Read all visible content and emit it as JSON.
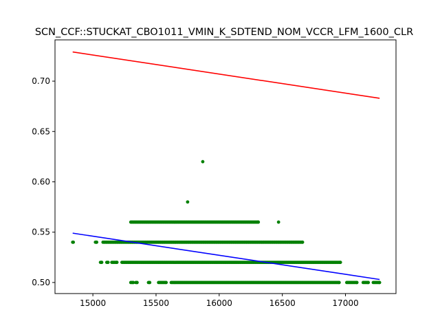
{
  "chart_data": {
    "type": "scatter",
    "title": "SCN_CCF::STUCKAT_CBO1011_VMIN_K_SDTEND_NOM_VCCR_LFM_1600_CLR",
    "xlabel": "",
    "ylabel": "",
    "xlim": [
      14700,
      17400
    ],
    "ylim": [
      0.489,
      0.741
    ],
    "x_ticks": [
      15000,
      15500,
      16000,
      16500,
      17000
    ],
    "y_ticks": [
      0.5,
      0.55,
      0.6,
      0.65,
      0.7
    ],
    "x_tick_labels": [
      "15000",
      "15500",
      "16000",
      "16500",
      "17000"
    ],
    "y_tick_labels": [
      "0.50",
      "0.55",
      "0.60",
      "0.65",
      "0.70"
    ],
    "grid": false,
    "colors": {
      "points": "#008000",
      "upper_line": "#ff0000",
      "fit_line": "#0000ff"
    },
    "lines": [
      {
        "color": "#ff0000",
        "x": [
          14840,
          17270
        ],
        "y": [
          0.729,
          0.683
        ]
      },
      {
        "color": "#0000ff",
        "x": [
          14840,
          17270
        ],
        "y": [
          0.549,
          0.503
        ]
      }
    ],
    "point_bands": [
      {
        "y": 0.5,
        "x_ranges": [
          [
            15300,
            15320
          ],
          [
            15340,
            15350
          ],
          [
            15440,
            15450
          ],
          [
            15520,
            15580
          ],
          [
            15620,
            16950
          ],
          [
            17010,
            17090
          ],
          [
            17140,
            17180
          ],
          [
            17220,
            17270
          ]
        ]
      },
      {
        "y": 0.52,
        "x_ranges": [
          [
            15060,
            15070
          ],
          [
            15110,
            15120
          ],
          [
            15150,
            15190
          ],
          [
            15230,
            16960
          ]
        ]
      },
      {
        "y": 0.54,
        "x_ranges": [
          [
            14840,
            14845
          ],
          [
            15020,
            15030
          ],
          [
            15080,
            16660
          ]
        ]
      },
      {
        "y": 0.56,
        "x_ranges": [
          [
            15300,
            16310
          ]
        ]
      }
    ],
    "outliers": [
      {
        "x": 15870,
        "y": 0.62
      },
      {
        "x": 15750,
        "y": 0.58
      },
      {
        "x": 16470,
        "y": 0.56
      }
    ]
  }
}
